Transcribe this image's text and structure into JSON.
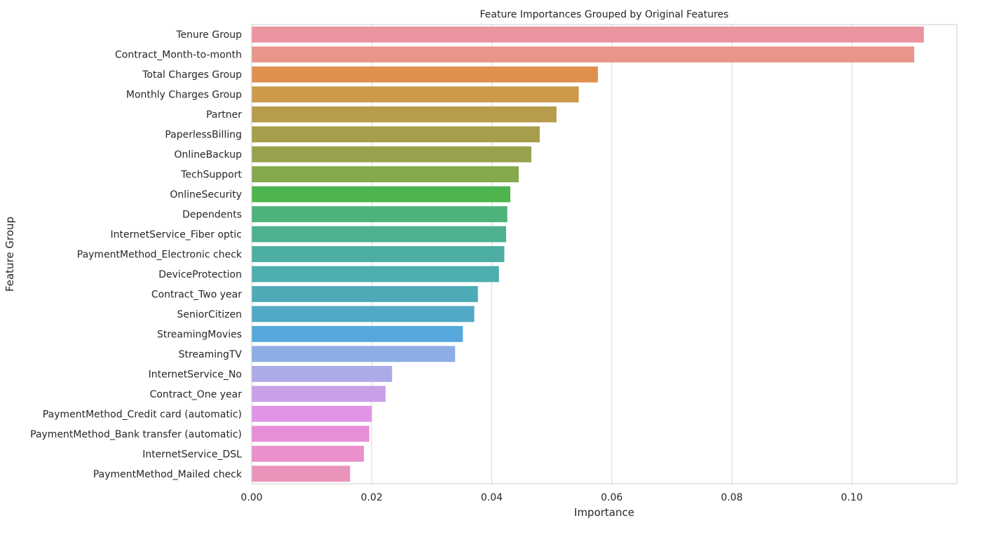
{
  "chart_data": {
    "type": "bar",
    "orientation": "horizontal",
    "title": "Feature Importances Grouped by Original Features",
    "xlabel": "Importance",
    "ylabel": "Feature Group",
    "xlim": [
      0,
      0.1175
    ],
    "xticks": [
      0.0,
      0.02,
      0.04,
      0.06,
      0.08,
      0.1
    ],
    "xtick_labels": [
      "0.00",
      "0.02",
      "0.04",
      "0.06",
      "0.08",
      "0.10"
    ],
    "grid": "vertical",
    "legend": "none",
    "categories": [
      "Tenure Group",
      "Contract_Month-to-month",
      "Total Charges Group",
      "Monthly Charges Group",
      "Partner",
      "PaperlessBilling",
      "OnlineBackup",
      "TechSupport",
      "OnlineSecurity",
      "Dependents",
      "InternetService_Fiber optic",
      "PaymentMethod_Electronic check",
      "DeviceProtection",
      "Contract_Two year",
      "SeniorCitizen",
      "StreamingMovies",
      "StreamingTV",
      "InternetService_No",
      "Contract_One year",
      "PaymentMethod_Credit card (automatic)",
      "PaymentMethod_Bank transfer (automatic)",
      "InternetService_DSL",
      "PaymentMethod_Mailed check"
    ],
    "values": [
      0.112,
      0.1104,
      0.0577,
      0.0545,
      0.0508,
      0.048,
      0.0466,
      0.0445,
      0.0431,
      0.0426,
      0.0424,
      0.0421,
      0.0412,
      0.0377,
      0.0371,
      0.0352,
      0.0339,
      0.0234,
      0.0223,
      0.02,
      0.0196,
      0.0187,
      0.0164
    ],
    "colors": [
      "#ea94a0",
      "#e8968a",
      "#df904f",
      "#cc9a4a",
      "#b79c4c",
      "#a79e4b",
      "#98a14c",
      "#84a84b",
      "#4eb54e",
      "#4eb27b",
      "#4db191",
      "#4caea1",
      "#4eadad",
      "#4faab8",
      "#52a9c6",
      "#56a8dc",
      "#8daee4",
      "#adaae8",
      "#c9a0e8",
      "#e094e6",
      "#e88ed8",
      "#ea90cb",
      "#ea94bb"
    ]
  }
}
